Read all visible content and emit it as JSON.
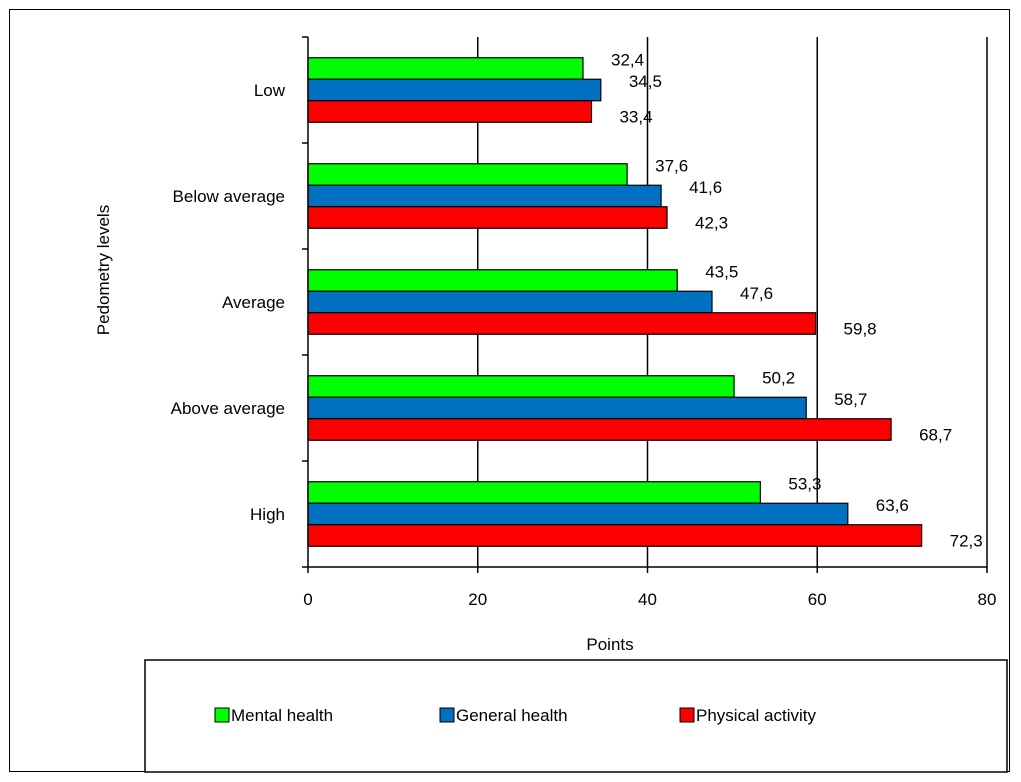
{
  "chart_data": {
    "type": "bar",
    "orientation": "horizontal",
    "categories": [
      "Low",
      "Below average",
      "Average",
      "Above average",
      "High"
    ],
    "series": [
      {
        "name": "Mental health",
        "color": "#00FF00",
        "values": [
          32.4,
          37.6,
          43.5,
          50.2,
          53.3
        ],
        "labels": [
          "32,4",
          "37,6",
          "43,5",
          "50,2",
          "53,3"
        ]
      },
      {
        "name": "General health",
        "color": "#0070C0",
        "values": [
          34.5,
          41.6,
          47.6,
          58.7,
          63.6
        ],
        "labels": [
          "34,5",
          "41,6",
          "47,6",
          "58,7",
          "63,6"
        ]
      },
      {
        "name": "Physical activity",
        "color": "#FF0000",
        "values": [
          33.4,
          42.3,
          59.8,
          68.7,
          72.3
        ],
        "labels": [
          "33,4",
          "42,3",
          "59,8",
          "68,7",
          "72,3"
        ]
      }
    ],
    "xlabel": "Points",
    "ylabel": "Pedometry levels",
    "xlim": [
      0,
      80
    ],
    "xticks": [
      "0",
      "20",
      "40",
      "60",
      "80"
    ],
    "grid": "vertical major gridlines",
    "legend_position": "bottom"
  }
}
